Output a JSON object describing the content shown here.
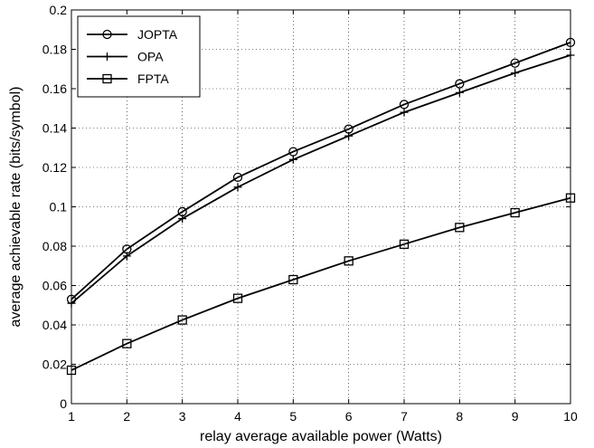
{
  "chart_data": {
    "type": "line",
    "title": "",
    "xlabel": "relay average available power (Watts)",
    "ylabel": "average achievable rate (bits/symbol)",
    "x": [
      1,
      2,
      3,
      4,
      5,
      6,
      7,
      8,
      9,
      10
    ],
    "xlim": [
      1,
      10
    ],
    "ylim": [
      0,
      0.2
    ],
    "xticks": [
      "1",
      "2",
      "3",
      "4",
      "5",
      "6",
      "7",
      "8",
      "9",
      "10"
    ],
    "yticks": [
      "0",
      "0.02",
      "0.04",
      "0.06",
      "0.08",
      "0.1",
      "0.12",
      "0.14",
      "0.16",
      "0.18",
      "0.2"
    ],
    "grid": true,
    "legend_position": "top-left",
    "series": [
      {
        "name": "JOPTA",
        "marker": "circle",
        "values": [
          0.053,
          0.0785,
          0.0975,
          0.115,
          0.128,
          0.1395,
          0.152,
          0.1625,
          0.173,
          0.1835
        ]
      },
      {
        "name": "OPA",
        "marker": "plus",
        "values": [
          0.051,
          0.075,
          0.094,
          0.11,
          0.124,
          0.136,
          0.148,
          0.158,
          0.168,
          0.177
        ]
      },
      {
        "name": "FPTA",
        "marker": "square",
        "values": [
          0.017,
          0.0305,
          0.0425,
          0.0535,
          0.063,
          0.0725,
          0.081,
          0.0895,
          0.097,
          0.1045
        ]
      }
    ]
  }
}
